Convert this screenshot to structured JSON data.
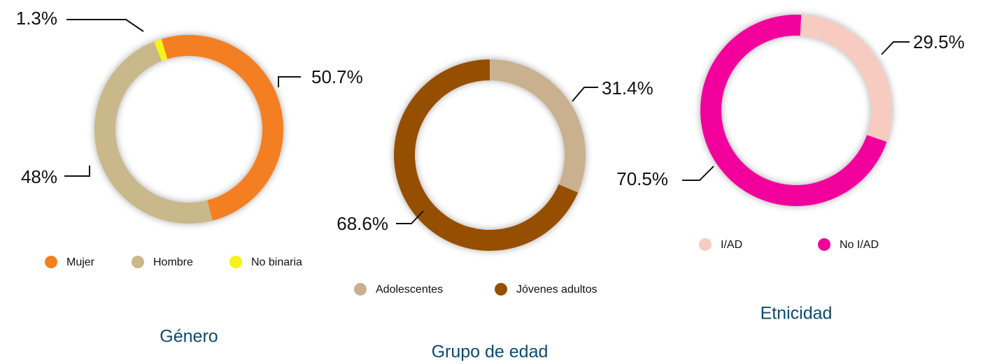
{
  "chart_data": [
    {
      "type": "pie",
      "title": "Género",
      "categories": [
        "Mujer",
        "Hombre",
        "No binaria"
      ],
      "values": [
        50.7,
        48,
        1.3
      ],
      "value_labels": [
        "50.7%",
        "48%",
        "1.3%"
      ],
      "colors": [
        "#f47f20",
        "#c8b88a",
        "#f7f21a"
      ]
    },
    {
      "type": "pie",
      "title": "Grupo de edad",
      "categories": [
        "Adolescentes",
        "Jóvenes adultos"
      ],
      "values": [
        31.4,
        68.6
      ],
      "value_labels": [
        "31.4%",
        "68.6%"
      ],
      "colors": [
        "#c9b08e",
        "#964f00"
      ]
    },
    {
      "type": "pie",
      "title": "Etnicidad",
      "categories": [
        "I/AD",
        "No I/AD"
      ],
      "values": [
        29.5,
        70.5
      ],
      "value_labels": [
        "29.5%",
        "70.5%"
      ],
      "colors": [
        "#f8cbc0",
        "#f2009b"
      ]
    }
  ]
}
